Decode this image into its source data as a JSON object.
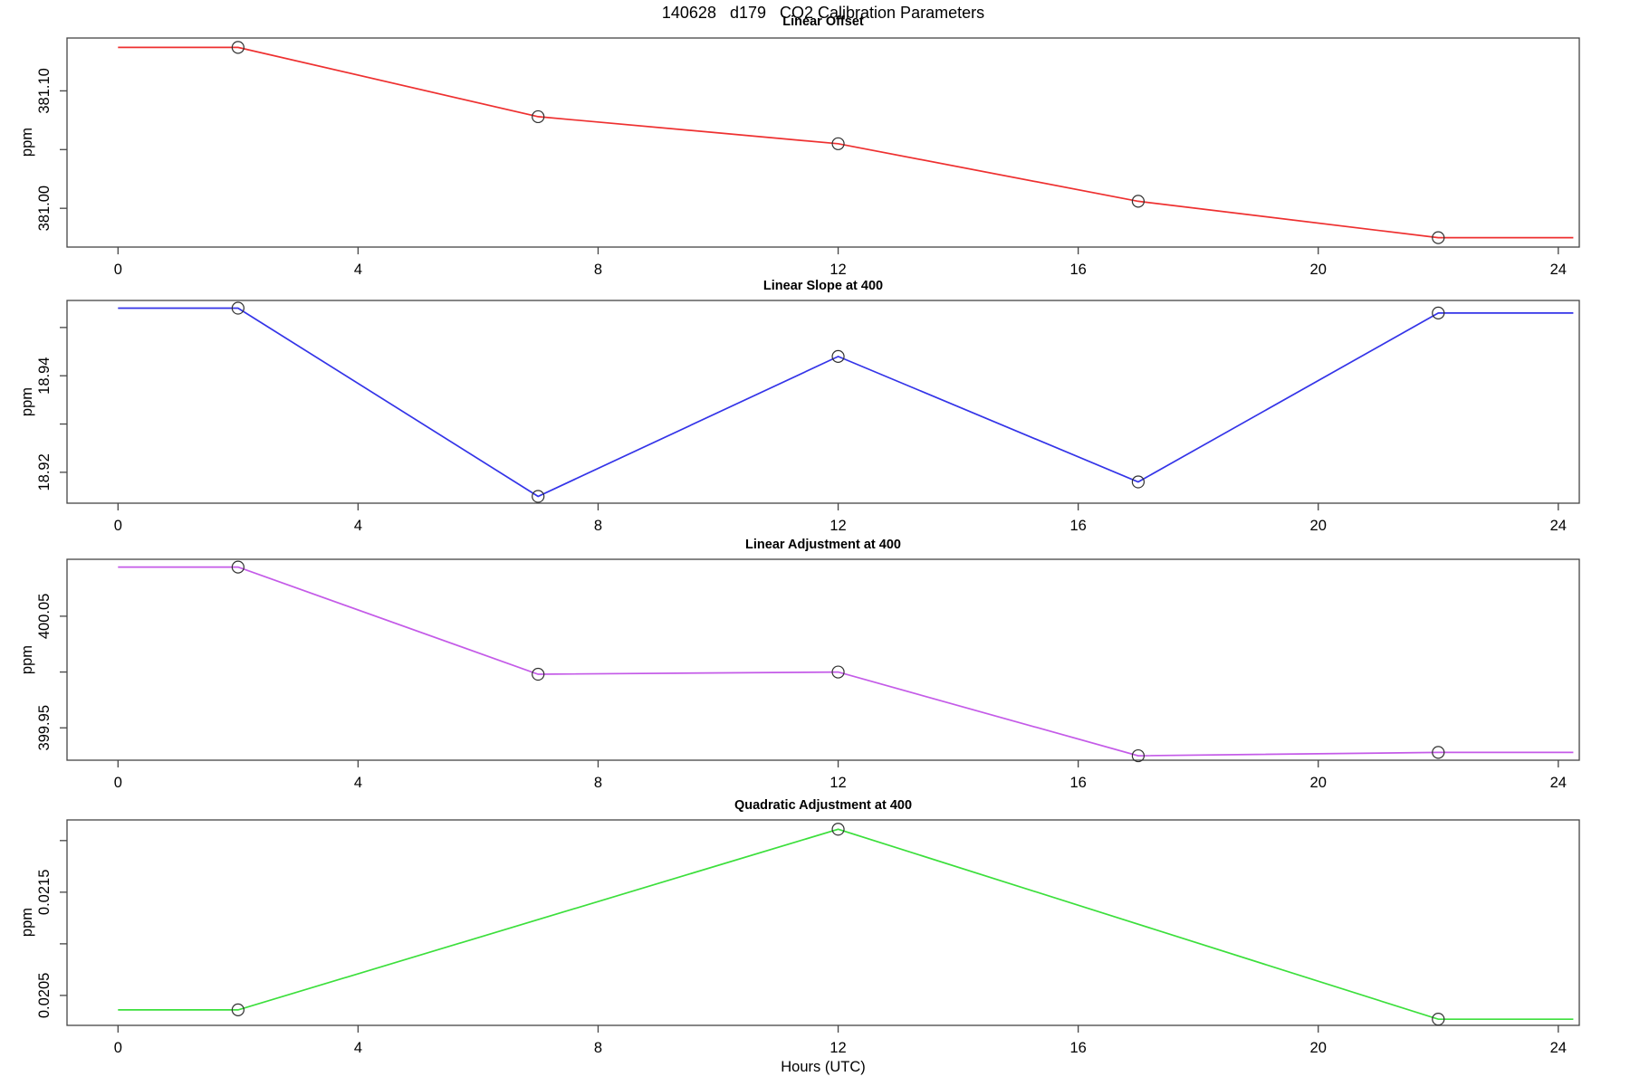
{
  "title": "140628   d179   CO2 Calibration Parameters",
  "xlabel": "Hours (UTC)",
  "axis_color": "#454545",
  "marker_color": "#303030",
  "chart_data": {
    "type": "line",
    "x_label": "Hours (UTC)",
    "x_ticks": [
      0,
      4,
      8,
      12,
      16,
      20,
      24
    ],
    "xlim": [
      -0.85,
      24.35
    ],
    "line_x_start": 0,
    "line_x_end": 24.25,
    "marker": "open-circle",
    "grid": false,
    "legend": "none",
    "panels": [
      {
        "title": "Linear Offset",
        "ylabel": "ppm",
        "color": "#ee3030",
        "x": [
          2,
          7,
          12,
          17,
          22
        ],
        "y": [
          381.137,
          381.078,
          381.055,
          381.006,
          380.975
        ],
        "ylim": [
          380.967,
          381.145
        ],
        "yticks": [
          {
            "v": 381.0,
            "label": "381.00"
          },
          {
            "v": 381.05,
            "label": ""
          },
          {
            "v": 381.1,
            "label": "381.10"
          }
        ]
      },
      {
        "title": "Linear Slope at 400",
        "ylabel": "ppm",
        "color": "#3434e8",
        "x": [
          2,
          7,
          12,
          17,
          22
        ],
        "y": [
          18.954,
          18.915,
          18.944,
          18.918,
          18.953
        ],
        "ylim": [
          18.9136,
          18.9556
        ],
        "yticks": [
          {
            "v": 18.92,
            "label": "18.92"
          },
          {
            "v": 18.93,
            "label": ""
          },
          {
            "v": 18.94,
            "label": "18.94"
          },
          {
            "v": 18.95,
            "label": ""
          }
        ]
      },
      {
        "title": "Linear Adjustment at 400",
        "ylabel": "ppm",
        "color": "#c45be8",
        "x": [
          2,
          7,
          12,
          17,
          22
        ],
        "y": [
          400.094,
          399.998,
          400.0,
          399.925,
          399.928
        ],
        "ylim": [
          399.921,
          400.101
        ],
        "yticks": [
          {
            "v": 399.95,
            "label": "399.95"
          },
          {
            "v": 400.0,
            "label": ""
          },
          {
            "v": 400.05,
            "label": "400.05"
          }
        ]
      },
      {
        "title": "Quadratic Adjustment at 400",
        "ylabel": "ppm",
        "color": "#3cdf3c",
        "x": [
          2,
          12,
          22
        ],
        "y": [
          0.02036,
          0.02211,
          0.02027
        ],
        "ylim": [
          0.02021,
          0.0222
        ],
        "yticks": [
          {
            "v": 0.0205,
            "label": "0.0205"
          },
          {
            "v": 0.021,
            "label": ""
          },
          {
            "v": 0.0215,
            "label": "0.0215"
          },
          {
            "v": 0.022,
            "label": ""
          }
        ]
      }
    ]
  }
}
